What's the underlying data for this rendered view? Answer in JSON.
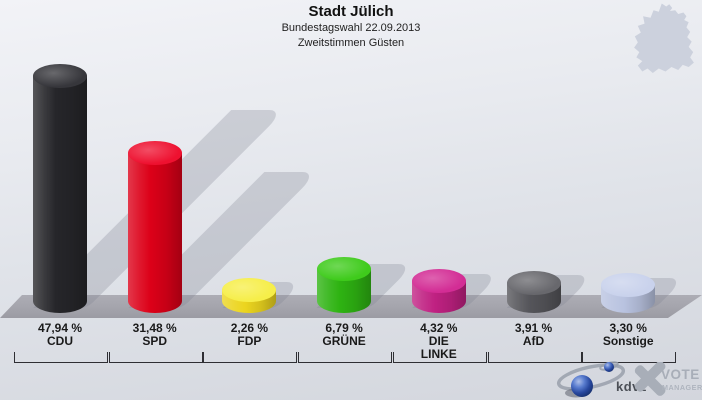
{
  "header": {
    "title": "Stadt Jülich",
    "subtitle1": "Bundestagswahl 22.09.2013",
    "subtitle2": "Zweitstimmen Güsten"
  },
  "chart_data": {
    "type": "bar",
    "title": "Stadt Jülich",
    "subtitle": "Bundestagswahl 22.09.2013 – Zweitstimmen Güsten",
    "categories": [
      "CDU",
      "SPD",
      "FDP",
      "GRÜNE",
      "DIE LINKE",
      "AfD",
      "Sonstige"
    ],
    "values": [
      47.94,
      31.48,
      2.26,
      6.79,
      4.32,
      3.91,
      3.3
    ],
    "value_labels": [
      "47,94 %",
      "31,48 %",
      "2,26 %",
      "6,79 %",
      "4,32 %",
      "3,91 %",
      "3,30 %"
    ],
    "display_labels": [
      "CDU",
      "SPD",
      "FDP",
      "GRÜNE",
      "DIE\nLINKE",
      "AfD",
      "Sonstige"
    ],
    "keys": [
      "cdu",
      "spd",
      "fdp",
      "gruene",
      "die-linke",
      "afd",
      "sonstige"
    ],
    "bar_colors": [
      "#26262a",
      "#dc0018",
      "#ecd51f",
      "#2eb312",
      "#c02182",
      "#55555a",
      "#b9c3e0"
    ],
    "bar_cap_colors": [
      "#36363b",
      "#ee1130",
      "#f6ee49",
      "#3fcb1c",
      "#d32d95",
      "#68686d",
      "#c9d2ec"
    ],
    "unit": "%",
    "ylim": [
      0,
      50
    ],
    "xlabel": "",
    "ylabel": "",
    "legend": "none",
    "grid": false,
    "style": "3d-cylinder-bars-with-diagonal-shadows"
  },
  "branding": {
    "kdvz_label": "kdvz",
    "vote_line1": "VOTE",
    "vote_line2": "MANAGER"
  },
  "icons": {
    "germany_map": "germany-map-silhouette",
    "kdvz_sphere": "blue-sphere-swoosh",
    "vote_x": "gray-x-mark"
  }
}
